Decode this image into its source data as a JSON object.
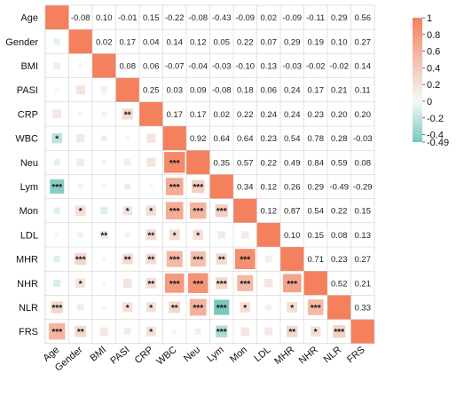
{
  "chart_data": {
    "type": "heatmap",
    "subtype": "correlation-matrix",
    "variables": [
      "Age",
      "Gender",
      "BMI",
      "PASI",
      "CRP",
      "WBC",
      "Neu",
      "Lym",
      "Mon",
      "LDL",
      "MHR",
      "NHR",
      "NLR",
      "FRS"
    ],
    "upper_triangle_values": [
      [
        null,
        -0.08,
        0.1,
        -0.01,
        0.15,
        -0.22,
        -0.08,
        -0.43,
        -0.09,
        0.02,
        -0.09,
        -0.11,
        0.29,
        0.56
      ],
      [
        null,
        null,
        0.02,
        0.17,
        0.04,
        0.14,
        0.12,
        0.05,
        0.22,
        0.07,
        0.29,
        0.19,
        0.1,
        0.27
      ],
      [
        null,
        null,
        null,
        0.08,
        0.06,
        -0.07,
        -0.04,
        -0.03,
        -0.1,
        0.13,
        -0.03,
        -0.02,
        -0.02,
        0.14
      ],
      [
        null,
        null,
        null,
        null,
        0.25,
        0.03,
        0.09,
        -0.08,
        0.18,
        0.06,
        0.24,
        0.17,
        0.21,
        0.11
      ],
      [
        null,
        null,
        null,
        null,
        null,
        0.17,
        0.17,
        0.02,
        0.22,
        0.24,
        0.24,
        0.23,
        0.2,
        0.2
      ],
      [
        null,
        null,
        null,
        null,
        null,
        null,
        0.92,
        0.64,
        0.64,
        0.23,
        0.54,
        0.78,
        0.28,
        -0.03
      ],
      [
        null,
        null,
        null,
        null,
        null,
        null,
        null,
        0.35,
        0.57,
        0.22,
        0.49,
        0.84,
        0.59,
        0.08
      ],
      [
        null,
        null,
        null,
        null,
        null,
        null,
        null,
        null,
        0.34,
        0.12,
        0.26,
        0.29,
        -0.49,
        -0.29
      ],
      [
        null,
        null,
        null,
        null,
        null,
        null,
        null,
        null,
        null,
        0.12,
        0.87,
        0.54,
        0.22,
        0.15
      ],
      [
        null,
        null,
        null,
        null,
        null,
        null,
        null,
        null,
        null,
        null,
        0.1,
        0.15,
        0.08,
        0.13
      ],
      [
        null,
        null,
        null,
        null,
        null,
        null,
        null,
        null,
        null,
        null,
        null,
        0.71,
        0.23,
        0.27
      ],
      [
        null,
        null,
        null,
        null,
        null,
        null,
        null,
        null,
        null,
        null,
        null,
        null,
        0.52,
        0.21
      ],
      [
        null,
        null,
        null,
        null,
        null,
        null,
        null,
        null,
        null,
        null,
        null,
        null,
        null,
        0.33
      ],
      [
        null,
        null,
        null,
        null,
        null,
        null,
        null,
        null,
        null,
        null,
        null,
        null,
        null,
        null
      ]
    ],
    "lower_triangle_significance": [
      [],
      [
        ""
      ],
      [
        "",
        ""
      ],
      [
        "",
        "",
        ""
      ],
      [
        "",
        "",
        "",
        "**"
      ],
      [
        "*",
        "",
        "",
        "",
        ""
      ],
      [
        "",
        "",
        "",
        "",
        "",
        "***"
      ],
      [
        "***",
        "",
        "",
        "",
        "",
        "***",
        "***"
      ],
      [
        "",
        "*",
        "",
        "*",
        "*",
        "***",
        "***",
        "***"
      ],
      [
        "",
        "",
        "**",
        "",
        "**",
        "*",
        "*",
        "",
        ""
      ],
      [
        "",
        "***",
        "",
        "**",
        "**",
        "***",
        "***",
        "**",
        "***",
        ""
      ],
      [
        "",
        "*",
        "",
        "",
        "**",
        "***",
        "***",
        "***",
        "***",
        "",
        "***"
      ],
      [
        "***",
        "",
        "",
        "*",
        "*",
        "**",
        "***",
        "***",
        "*",
        "",
        "*",
        "***"
      ],
      [
        "***",
        "**",
        "",
        "",
        "*",
        "",
        "",
        "***",
        "",
        "",
        "**",
        "*",
        "***"
      ]
    ],
    "diagonal_value": 1,
    "color_scale": {
      "min": -0.49,
      "max": 1,
      "negative_color": "#79c7bd",
      "zero_color": "#f4f9f8",
      "positive_color": "#f4805d",
      "ticks": [
        1,
        0.8,
        0.6,
        0.4,
        0.2,
        0,
        -0.2,
        -0.4
      ],
      "tick_labels": [
        "1",
        "0.8",
        "0.6",
        "0.4",
        "0.2",
        "0",
        "-0.2",
        "-0.4"
      ],
      "min_label": "-0.49"
    },
    "legend_placement": "right",
    "title": "",
    "xlabel": "",
    "ylabel": ""
  }
}
